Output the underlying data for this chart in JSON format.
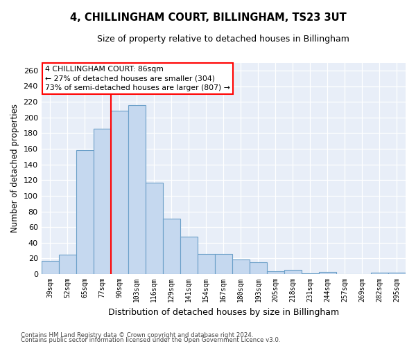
{
  "title": "4, CHILLINGHAM COURT, BILLINGHAM, TS23 3UT",
  "subtitle": "Size of property relative to detached houses in Billingham",
  "xlabel": "Distribution of detached houses by size in Billingham",
  "ylabel": "Number of detached properties",
  "bar_color": "#c5d8ef",
  "bar_edge_color": "#6a9fc8",
  "background_color": "#e8eef8",
  "grid_color": "#d0d8e8",
  "categories": [
    "39sqm",
    "52sqm",
    "65sqm",
    "77sqm",
    "90sqm",
    "103sqm",
    "116sqm",
    "129sqm",
    "141sqm",
    "154sqm",
    "167sqm",
    "180sqm",
    "193sqm",
    "205sqm",
    "218sqm",
    "231sqm",
    "244sqm",
    "257sqm",
    "269sqm",
    "282sqm",
    "295sqm"
  ],
  "values": [
    17,
    25,
    158,
    186,
    209,
    216,
    117,
    71,
    48,
    26,
    26,
    19,
    15,
    4,
    5,
    1,
    3,
    0,
    0,
    2,
    2
  ],
  "ylim": [
    0,
    270
  ],
  "yticks": [
    0,
    20,
    40,
    60,
    80,
    100,
    120,
    140,
    160,
    180,
    200,
    220,
    240,
    260
  ],
  "annotation_line1": "4 CHILLINGHAM COURT: 86sqm",
  "annotation_line2": "← 27% of detached houses are smaller (304)",
  "annotation_line3": "73% of semi-detached houses are larger (807) →",
  "vline_x_idx": 3.5,
  "footer1": "Contains HM Land Registry data © Crown copyright and database right 2024.",
  "footer2": "Contains public sector information licensed under the Open Government Licence v3.0."
}
